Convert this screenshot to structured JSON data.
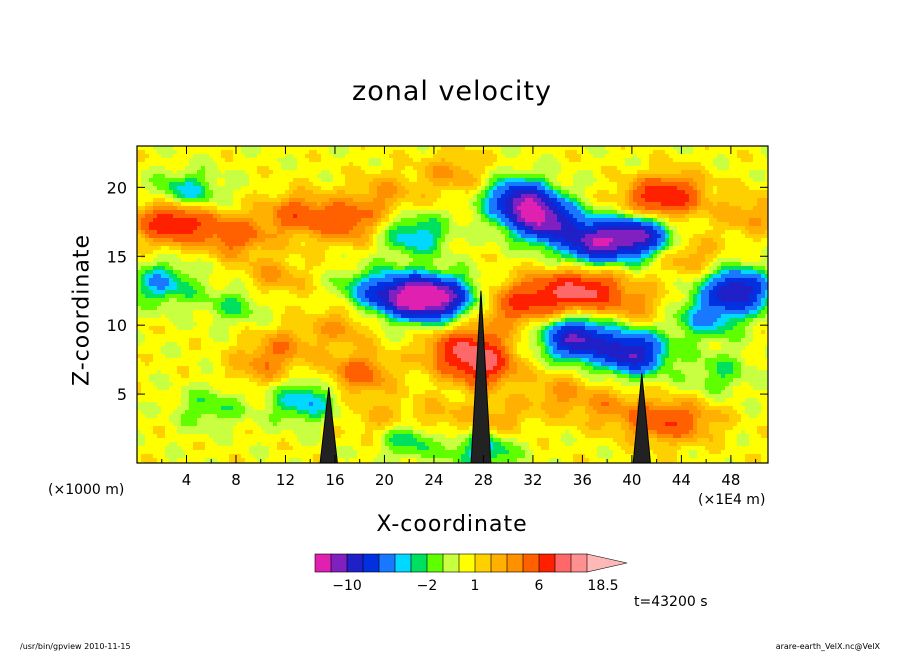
{
  "chart_data": {
    "type": "heatmap",
    "title": "zonal velocity",
    "xlabel": "X-coordinate",
    "ylabel": "Z-coordinate",
    "x_unit_note": "(×1000 m)",
    "x_scale_note": "(×1E4 m)",
    "timestamp": "t=43200 s",
    "x_ticks": [
      "4",
      "8",
      "12",
      "16",
      "20",
      "24",
      "28",
      "32",
      "36",
      "40",
      "44",
      "48"
    ],
    "y_ticks": [
      "5",
      "10",
      "15",
      "20"
    ],
    "xlim": [
      0,
      51
    ],
    "ylim": [
      0,
      23
    ],
    "colorbar": {
      "levels": [
        -14,
        -12,
        -10,
        -8,
        -6,
        -4,
        -3,
        -2,
        -1,
        0,
        1,
        2,
        3,
        4,
        6,
        8,
        11,
        14.5,
        18.5
      ],
      "tick_labels": [
        "-10",
        "-2",
        "1",
        "6",
        "18.5"
      ],
      "colors": [
        "#e020b0",
        "#8020c0",
        "#2020c8",
        "#0030e0",
        "#1878ff",
        "#00d8ff",
        "#00e060",
        "#60ff00",
        "#c8ff40",
        "#ffff00",
        "#ffd000",
        "#ffb000",
        "#ff9000",
        "#ff6000",
        "#ff2000",
        "#ff6868",
        "#ff9090",
        "#ffb8b8"
      ]
    },
    "features": [
      {
        "x": 8,
        "z": 16.5,
        "u": 5
      },
      {
        "x": 4,
        "z": 17.5,
        "u": 5
      },
      {
        "x": 2,
        "z": 17.5,
        "u": 5
      },
      {
        "x": 11,
        "z": 13.5,
        "u": 3
      },
      {
        "x": 2,
        "z": 13,
        "u": -4
      },
      {
        "x": 4,
        "z": 19.5,
        "u": -4
      },
      {
        "x": 17,
        "z": 17.5,
        "u": 5
      },
      {
        "x": 13,
        "z": 18,
        "u": 5
      },
      {
        "x": 12,
        "z": 8.5,
        "u": 3
      },
      {
        "x": 10,
        "z": 7,
        "u": 3
      },
      {
        "x": 18,
        "z": 6.5,
        "u": 5
      },
      {
        "x": 16.5,
        "z": 10,
        "u": 3
      },
      {
        "x": 19,
        "z": 12.5,
        "u": -4
      },
      {
        "x": 22,
        "z": 12,
        "u": -10
      },
      {
        "x": 24.5,
        "z": 12,
        "u": -10
      },
      {
        "x": 25,
        "z": 8,
        "u": 3
      },
      {
        "x": 27,
        "z": 8.5,
        "u": 5
      },
      {
        "x": 28,
        "z": 7,
        "u": 7
      },
      {
        "x": 30,
        "z": 11,
        "u": 3
      },
      {
        "x": 32,
        "z": 12,
        "u": 5
      },
      {
        "x": 35,
        "z": 12.5,
        "u": 5
      },
      {
        "x": 37,
        "z": 12.5,
        "u": 5
      },
      {
        "x": 31,
        "z": 19,
        "u": -10
      },
      {
        "x": 33,
        "z": 17.5,
        "u": -10
      },
      {
        "x": 37,
        "z": 16,
        "u": -10
      },
      {
        "x": 40.5,
        "z": 16.5,
        "u": -10
      },
      {
        "x": 41.5,
        "z": 19,
        "u": 5
      },
      {
        "x": 43.5,
        "z": 19.5,
        "u": 5
      },
      {
        "x": 46,
        "z": 10.5,
        "u": -4
      },
      {
        "x": 48.5,
        "z": 12.5,
        "u": -10
      },
      {
        "x": 47,
        "z": 6.5,
        "u": -2
      },
      {
        "x": 40,
        "z": 8,
        "u": -10
      },
      {
        "x": 42,
        "z": 3,
        "u": 5
      },
      {
        "x": 45,
        "z": 3,
        "u": 3
      },
      {
        "x": 29,
        "z": 3,
        "u": 3
      },
      {
        "x": 24,
        "z": 3,
        "u": 3
      },
      {
        "x": 20,
        "z": 3,
        "u": 3
      },
      {
        "x": 34,
        "z": 5,
        "u": 3
      },
      {
        "x": 38,
        "z": 4,
        "u": 3
      },
      {
        "x": 28,
        "z": 1,
        "u": -4
      },
      {
        "x": 22,
        "z": 2,
        "u": -4
      },
      {
        "x": 13.5,
        "z": 4.5,
        "u": -4
      },
      {
        "x": 6,
        "z": 4,
        "u": -2
      },
      {
        "x": 8,
        "z": 11.5,
        "u": -2
      },
      {
        "x": 49.5,
        "z": 18,
        "u": 3
      },
      {
        "x": 44.5,
        "z": 15,
        "u": 3
      },
      {
        "x": 40.5,
        "z": 11.5,
        "u": 3
      },
      {
        "x": 35.5,
        "z": 9,
        "u": -10
      },
      {
        "x": 20,
        "z": 19.5,
        "u": 3
      },
      {
        "x": 25.5,
        "z": 21,
        "u": 3
      },
      {
        "x": 22.5,
        "z": 16.5,
        "u": -4
      }
    ],
    "topography_peaks": [
      {
        "x": 15.5,
        "z": 5.5,
        "half_width": 0.7
      },
      {
        "x": 27.8,
        "z": 12.5,
        "half_width": 0.8
      },
      {
        "x": 40.8,
        "z": 6.5,
        "half_width": 0.7
      }
    ]
  },
  "footer": {
    "left": "/usr/bin/gpview   2010-11-15",
    "right": "arare-earth_VelX.nc@VelX"
  }
}
